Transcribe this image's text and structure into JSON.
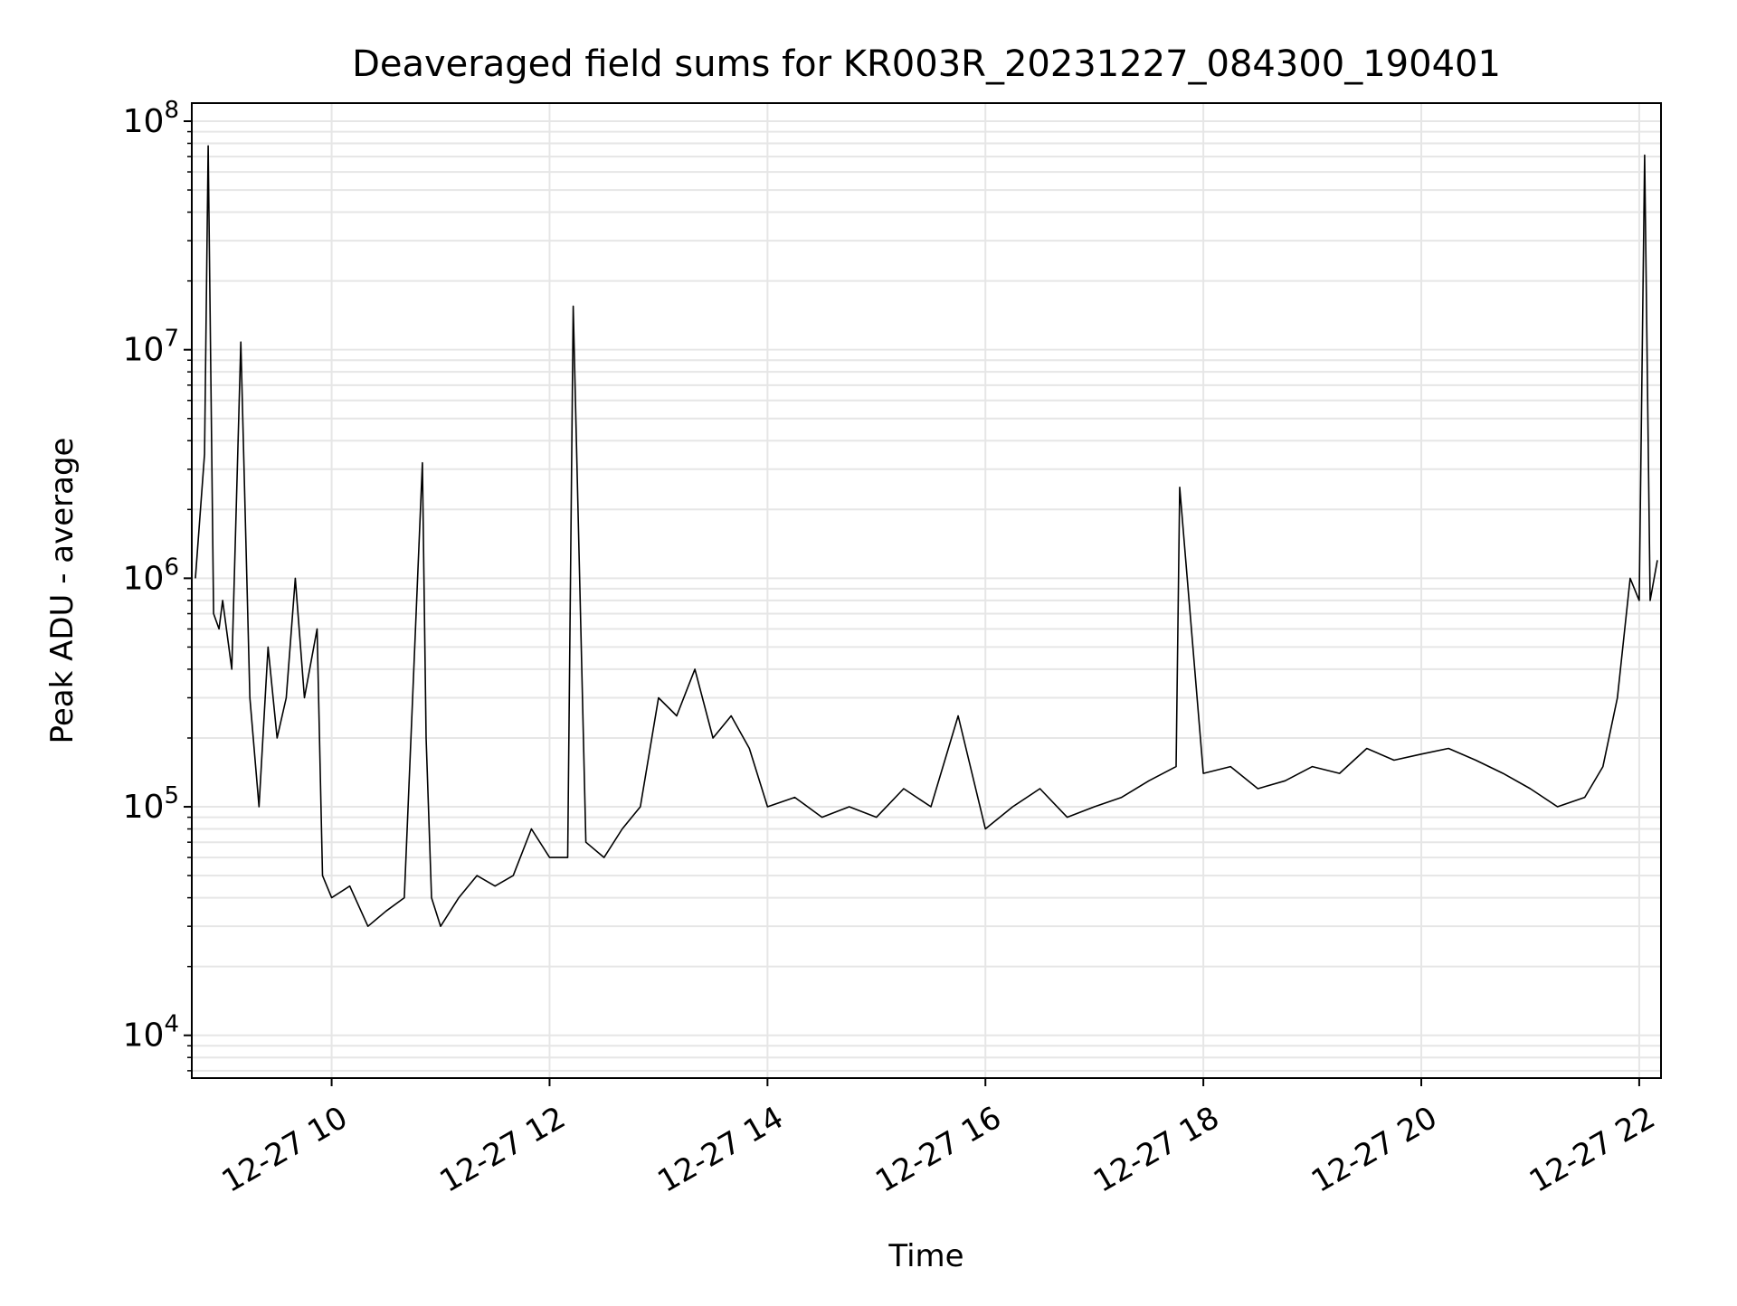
{
  "chart_data": {
    "type": "line",
    "title": "Deaveraged field sums for KR003R_20231227_084300_190401",
    "xlabel": "Time",
    "ylabel": "Peak ADU - average",
    "yscale": "log",
    "grid": true,
    "legend": "none",
    "line_color": "#000000",
    "xlim": [
      "2023-12-27 08:43",
      "2023-12-27 22:12"
    ],
    "ylim": [
      6500,
      120000000
    ],
    "x_ticks": [
      {
        "value": "2023-12-27 10:00",
        "label": "12-27 10"
      },
      {
        "value": "2023-12-27 12:00",
        "label": "12-27 12"
      },
      {
        "value": "2023-12-27 14:00",
        "label": "12-27 14"
      },
      {
        "value": "2023-12-27 16:00",
        "label": "12-27 16"
      },
      {
        "value": "2023-12-27 18:00",
        "label": "12-27 18"
      },
      {
        "value": "2023-12-27 20:00",
        "label": "12-27 20"
      },
      {
        "value": "2023-12-27 22:00",
        "label": "12-27 22"
      }
    ],
    "y_ticks": [
      {
        "value": 10000,
        "base": "10",
        "exp": "4"
      },
      {
        "value": 100000,
        "base": "10",
        "exp": "5"
      },
      {
        "value": 1000000,
        "base": "10",
        "exp": "6"
      },
      {
        "value": 10000000,
        "base": "10",
        "exp": "7"
      },
      {
        "value": 100000000,
        "base": "10",
        "exp": "8"
      }
    ],
    "series": [
      {
        "x": [
          "2023-12-27 08:45",
          "2023-12-27 08:50",
          "2023-12-27 08:52",
          "2023-12-27 08:55",
          "2023-12-27 08:58",
          "2023-12-27 09:00",
          "2023-12-27 09:05",
          "2023-12-27 09:10",
          "2023-12-27 09:15",
          "2023-12-27 09:20",
          "2023-12-27 09:25",
          "2023-12-27 09:30",
          "2023-12-27 09:35",
          "2023-12-27 09:40",
          "2023-12-27 09:45",
          "2023-12-27 09:52",
          "2023-12-27 09:55",
          "2023-12-27 10:00",
          "2023-12-27 10:10",
          "2023-12-27 10:20",
          "2023-12-27 10:30",
          "2023-12-27 10:40",
          "2023-12-27 10:50",
          "2023-12-27 10:52",
          "2023-12-27 10:55",
          "2023-12-27 11:00",
          "2023-12-27 11:10",
          "2023-12-27 11:20",
          "2023-12-27 11:30",
          "2023-12-27 11:40",
          "2023-12-27 11:50",
          "2023-12-27 12:00",
          "2023-12-27 12:10",
          "2023-12-27 12:13",
          "2023-12-27 12:20",
          "2023-12-27 12:30",
          "2023-12-27 12:40",
          "2023-12-27 12:50",
          "2023-12-27 13:00",
          "2023-12-27 13:10",
          "2023-12-27 13:20",
          "2023-12-27 13:30",
          "2023-12-27 13:40",
          "2023-12-27 13:50",
          "2023-12-27 14:00",
          "2023-12-27 14:15",
          "2023-12-27 14:30",
          "2023-12-27 14:45",
          "2023-12-27 15:00",
          "2023-12-27 15:15",
          "2023-12-27 15:30",
          "2023-12-27 15:45",
          "2023-12-27 16:00",
          "2023-12-27 16:15",
          "2023-12-27 16:30",
          "2023-12-27 16:45",
          "2023-12-27 17:00",
          "2023-12-27 17:15",
          "2023-12-27 17:30",
          "2023-12-27 17:45",
          "2023-12-27 17:47",
          "2023-12-27 18:00",
          "2023-12-27 18:15",
          "2023-12-27 18:30",
          "2023-12-27 18:45",
          "2023-12-27 19:00",
          "2023-12-27 19:15",
          "2023-12-27 19:30",
          "2023-12-27 19:45",
          "2023-12-27 20:00",
          "2023-12-27 20:15",
          "2023-12-27 20:30",
          "2023-12-27 20:45",
          "2023-12-27 21:00",
          "2023-12-27 21:15",
          "2023-12-27 21:30",
          "2023-12-27 21:40",
          "2023-12-27 21:48",
          "2023-12-27 21:55",
          "2023-12-27 22:00",
          "2023-12-27 22:03",
          "2023-12-27 22:06",
          "2023-12-27 22:10"
        ],
        "y": [
          1000000,
          3500000,
          78000000,
          700000,
          600000,
          800000,
          400000,
          10800000,
          300000,
          100000,
          500000,
          200000,
          300000,
          1000000,
          300000,
          600000,
          50000,
          40000,
          45000,
          30000,
          35000,
          40000,
          3200000,
          200000,
          40000,
          30000,
          40000,
          50000,
          45000,
          50000,
          80000,
          60000,
          60000,
          15500000,
          70000,
          60000,
          80000,
          100000,
          300000,
          250000,
          400000,
          200000,
          250000,
          180000,
          100000,
          110000,
          90000,
          100000,
          90000,
          120000,
          100000,
          250000,
          80000,
          100000,
          120000,
          90000,
          100000,
          110000,
          130000,
          150000,
          2500000,
          140000,
          150000,
          120000,
          130000,
          150000,
          140000,
          180000,
          160000,
          170000,
          180000,
          160000,
          140000,
          120000,
          100000,
          110000,
          150000,
          300000,
          1000000,
          800000,
          71000000,
          800000,
          1200000
        ]
      }
    ]
  }
}
